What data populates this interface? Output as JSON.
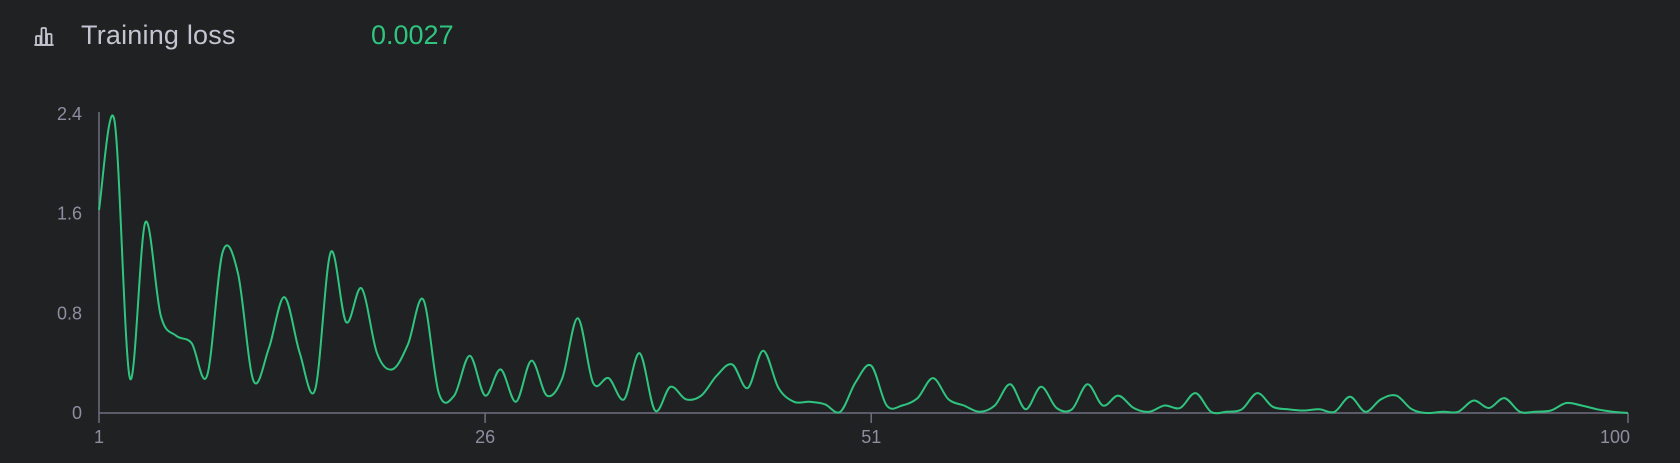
{
  "header": {
    "icon": "bar-chart-icon",
    "title": "Training loss",
    "value": "0.0027"
  },
  "colors": {
    "background": "#202123",
    "line": "#2fc57f",
    "axis": "#6e6e80",
    "text": "#c5c5d2",
    "tick_text": "#8e8ea0"
  },
  "chart_data": {
    "type": "line",
    "title": "Training loss",
    "xlabel": "",
    "ylabel": "",
    "xlim": [
      1,
      100
    ],
    "ylim": [
      0,
      2.4
    ],
    "x_ticks": [
      1,
      26,
      51,
      100
    ],
    "y_ticks": [
      0,
      0.8,
      1.6,
      2.4
    ],
    "x_tick_labels": [
      "1",
      "26",
      "51",
      "100"
    ],
    "y_tick_labels": [
      "0",
      "0.8",
      "1.6",
      "2.4"
    ],
    "grid": false,
    "legend": "none",
    "series": [
      {
        "x": [
          1,
          2,
          3,
          4,
          5,
          6,
          7,
          8,
          9,
          10,
          11,
          12,
          13,
          14,
          15,
          16,
          17,
          18,
          19,
          20,
          21,
          22,
          23,
          24,
          25,
          26,
          27,
          28,
          29,
          30,
          31,
          32,
          33,
          34,
          35,
          36,
          37,
          38,
          39,
          40,
          41,
          42,
          43,
          44,
          45,
          46,
          47,
          48,
          49,
          50,
          51,
          52,
          53,
          54,
          55,
          56,
          57,
          58,
          59,
          60,
          61,
          62,
          63,
          64,
          65,
          66,
          67,
          68,
          69,
          70,
          71,
          72,
          73,
          74,
          75,
          76,
          77,
          78,
          79,
          80,
          81,
          82,
          83,
          84,
          85,
          86,
          87,
          88,
          89,
          90,
          91,
          92,
          93,
          94,
          95,
          96,
          97,
          98,
          99,
          100
        ],
        "values": [
          1.63,
          2.35,
          0.28,
          1.53,
          0.78,
          0.62,
          0.56,
          0.3,
          1.29,
          1.12,
          0.26,
          0.52,
          0.93,
          0.48,
          0.19,
          1.29,
          0.73,
          1.0,
          0.48,
          0.35,
          0.55,
          0.91,
          0.16,
          0.14,
          0.46,
          0.14,
          0.35,
          0.09,
          0.42,
          0.14,
          0.28,
          0.76,
          0.24,
          0.28,
          0.11,
          0.48,
          0.02,
          0.21,
          0.11,
          0.14,
          0.3,
          0.39,
          0.2,
          0.5,
          0.2,
          0.09,
          0.09,
          0.07,
          0.01,
          0.25,
          0.38,
          0.06,
          0.06,
          0.12,
          0.28,
          0.11,
          0.06,
          0.01,
          0.06,
          0.23,
          0.03,
          0.21,
          0.04,
          0.03,
          0.23,
          0.06,
          0.14,
          0.04,
          0.01,
          0.06,
          0.04,
          0.16,
          0.01,
          0.01,
          0.03,
          0.16,
          0.05,
          0.03,
          0.02,
          0.03,
          0.01,
          0.13,
          0.01,
          0.11,
          0.14,
          0.03,
          0.0,
          0.01,
          0.01,
          0.1,
          0.04,
          0.12,
          0.01,
          0.01,
          0.02,
          0.08,
          0.06,
          0.03,
          0.01,
          0.0
        ]
      }
    ]
  }
}
